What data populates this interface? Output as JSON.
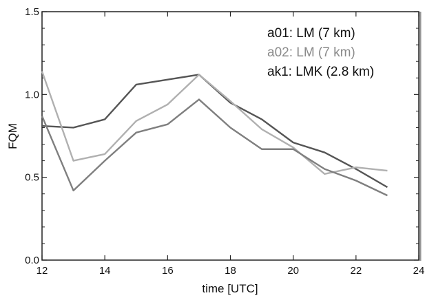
{
  "chart_data": {
    "type": "line",
    "xlabel": "time [UTC]",
    "ylabel": "FQM",
    "xlim": [
      12,
      24
    ],
    "ylim": [
      0.0,
      1.5
    ],
    "x_ticks": [
      12,
      14,
      16,
      18,
      20,
      22,
      24
    ],
    "x_tick_labels": [
      "12",
      "14",
      "16",
      "18",
      "20",
      "22",
      "24"
    ],
    "y_ticks": [
      0.0,
      0.5,
      1.0,
      1.5
    ],
    "y_tick_labels": [
      "0.0",
      "0.5",
      "1.0",
      "1.5"
    ],
    "grid": false,
    "legend_position": "top-right",
    "x": [
      12,
      13,
      14,
      15,
      16,
      17,
      18,
      19,
      20,
      21,
      22,
      23
    ],
    "series": [
      {
        "name": "a01: LM (7 km)",
        "color": "#555555",
        "values": [
          0.81,
          0.8,
          0.85,
          1.06,
          1.09,
          1.12,
          0.95,
          0.85,
          0.71,
          0.65,
          0.55,
          0.44
        ]
      },
      {
        "name": "a02: LM (7 km)",
        "color": "#b0b0b0",
        "values": [
          1.14,
          0.6,
          0.64,
          0.84,
          0.94,
          1.12,
          0.96,
          0.79,
          0.68,
          0.52,
          0.56,
          0.54
        ]
      },
      {
        "name": "ak1: LMK (2.8 km)",
        "color": "#7f7f7f",
        "values": [
          0.87,
          0.42,
          0.6,
          0.77,
          0.82,
          0.97,
          0.8,
          0.67,
          0.67,
          0.55,
          0.48,
          0.39
        ]
      }
    ]
  }
}
